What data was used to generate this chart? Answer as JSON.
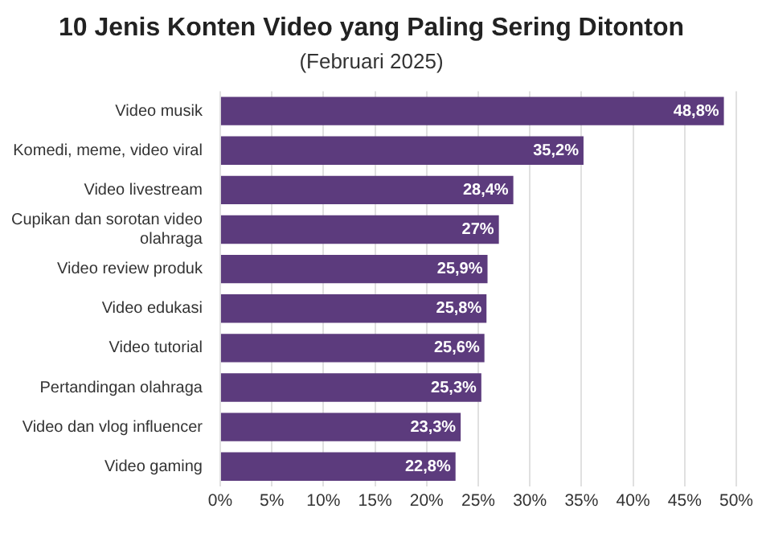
{
  "chart_data": {
    "type": "bar",
    "orientation": "horizontal",
    "title": "10 Jenis Konten Video yang Paling Sering Ditonton",
    "subtitle": "(Februari 2025)",
    "categories": [
      "Video musik",
      "Komedi, meme, video viral",
      "Video livestream",
      "Cupikan dan sorotan video olahraga",
      "Video review produk",
      "Video edukasi",
      "Video tutorial",
      "Pertandingan olahraga",
      "Video dan vlog influencer",
      "Video gaming"
    ],
    "values": [
      48.8,
      35.2,
      28.4,
      27,
      25.9,
      25.8,
      25.6,
      25.3,
      23.3,
      22.8
    ],
    "value_labels": [
      "48,8%",
      "35,2%",
      "28,4%",
      "27%",
      "25,9%",
      "25,8%",
      "25,6%",
      "25,3%",
      "23,3%",
      "22,8%"
    ],
    "color": "#5c3b7d",
    "xlim": [
      0,
      50
    ],
    "xticks": [
      {
        "value": 0,
        "label": "0%"
      },
      {
        "value": 5,
        "label": "5%"
      },
      {
        "value": 10,
        "label": "10%"
      },
      {
        "value": 15,
        "label": "15%"
      },
      {
        "value": 20,
        "label": "20%"
      },
      {
        "value": 25,
        "label": "25%"
      },
      {
        "value": 30,
        "label": "30%"
      },
      {
        "value": 35,
        "label": "35%"
      },
      {
        "value": 40,
        "label": "40%"
      },
      {
        "value": 45,
        "label": "45%"
      },
      {
        "value": 50,
        "label": "50%"
      }
    ],
    "grid": "x"
  }
}
